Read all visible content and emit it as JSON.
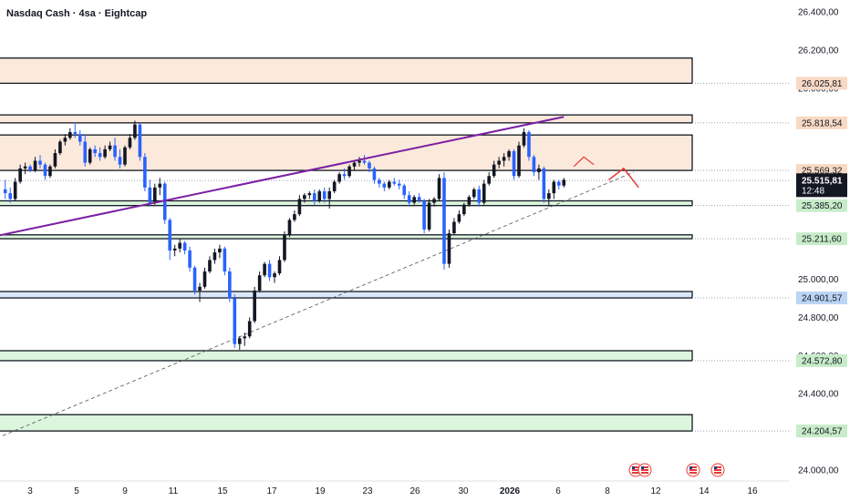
{
  "legend": {
    "symbol": "Nasdaq Cash",
    "interval": "4sa",
    "source": "Eightcap",
    "separator": " · "
  },
  "price_axis": {
    "ticks": [
      "26.400,00",
      "26.200,00",
      "25.000,00",
      "24.800,00",
      "24.400,00",
      "24.000,00"
    ],
    "tick_values": [
      26400,
      26200,
      25000,
      24800,
      24400,
      24000
    ],
    "partially_hidden": [
      {
        "text": "26.000,00",
        "value": 26000
      },
      {
        "text": "24.600,00",
        "value": 24600
      }
    ]
  },
  "price_tags": [
    {
      "text": "26.025,81",
      "value": 26025.81,
      "bg": "#f8d9c4",
      "fg": "#131722"
    },
    {
      "text": "25.818,54",
      "value": 25818.54,
      "bg": "#f8d9c4",
      "fg": "#131722"
    },
    {
      "text": "25.569,32",
      "value": 25569.32,
      "bg": "#f8d9c4",
      "fg": "#131722"
    },
    {
      "text": "25.385,20",
      "value": 25385.2,
      "bg": "#c8ecc9",
      "fg": "#131722"
    },
    {
      "text": "25.211,60",
      "value": 25211.6,
      "bg": "#c8ecc9",
      "fg": "#131722"
    },
    {
      "text": "24.901,57",
      "value": 24901.57,
      "bg": "#bcd4f5",
      "fg": "#131722"
    },
    {
      "text": "24.572,80",
      "value": 24572.8,
      "bg": "#c8ecc9",
      "fg": "#131722"
    },
    {
      "text": "24.204,57",
      "value": 24204.57,
      "bg": "#c8ecc9",
      "fg": "#131722"
    }
  ],
  "current_price": {
    "text": "25.515,81",
    "value": 25515.81,
    "countdown": "12:48",
    "bg": "#131722",
    "fg": "#ffffff"
  },
  "time_axis": {
    "labels": [
      {
        "text": "3",
        "bold": false
      },
      {
        "text": "5",
        "bold": false
      },
      {
        "text": "9",
        "bold": false
      },
      {
        "text": "11",
        "bold": false
      },
      {
        "text": "15",
        "bold": false
      },
      {
        "text": "17",
        "bold": false
      },
      {
        "text": "19",
        "bold": false
      },
      {
        "text": "23",
        "bold": false
      },
      {
        "text": "26",
        "bold": false
      },
      {
        "text": "30",
        "bold": false
      },
      {
        "text": "2026",
        "bold": true
      },
      {
        "text": "6",
        "bold": false
      },
      {
        "text": "8",
        "bold": false
      },
      {
        "text": "12",
        "bold": false
      },
      {
        "text": "14",
        "bold": false
      },
      {
        "text": "16",
        "bold": false
      }
    ]
  },
  "zones": [
    {
      "name": "supply-zone-top",
      "kind": "supply",
      "top": 26158,
      "bottom": 26025.81,
      "color": "#fbe9dc"
    },
    {
      "name": "supply-zone-mid",
      "kind": "supply",
      "top": 25860,
      "bottom": 25818.54,
      "color": "#fbe9dc"
    },
    {
      "name": "supply-zone-low",
      "kind": "supply",
      "top": 25755,
      "bottom": 25569.32,
      "color": "#fbe9dc"
    },
    {
      "name": "demand-zone-1",
      "kind": "demand",
      "top": 25410,
      "bottom": 25385.2,
      "color": "#dcf5dd"
    },
    {
      "name": "demand-zone-2",
      "kind": "demand",
      "top": 25232,
      "bottom": 25211.6,
      "color": "#dcf5dd"
    },
    {
      "name": "blue-zone",
      "kind": "neutral",
      "top": 24935,
      "bottom": 24901.57,
      "color": "#dbe8fb"
    },
    {
      "name": "demand-zone-3",
      "kind": "demand",
      "top": 24625,
      "bottom": 24572.8,
      "color": "#dcf5dd"
    },
    {
      "name": "demand-zone-4",
      "kind": "demand",
      "top": 24290,
      "bottom": 24204.57,
      "color": "#dcf5dd"
    }
  ],
  "colors": {
    "bull": "#131722",
    "bear": "#2962ff",
    "trend": "#7b1fa2",
    "projection": "#e53935",
    "grid": "#f0f3fa",
    "dashed": "#555555"
  },
  "chart_data": {
    "type": "candlestick",
    "instrument": "Nasdaq Cash",
    "candles": [
      [
        25470,
        25520,
        25420,
        25450
      ],
      [
        25450,
        25480,
        25400,
        25420
      ],
      [
        25420,
        25530,
        25410,
        25510
      ],
      [
        25510,
        25600,
        25500,
        25580
      ],
      [
        25580,
        25610,
        25550,
        25590
      ],
      [
        25590,
        25600,
        25560,
        25570
      ],
      [
        25570,
        25640,
        25560,
        25620
      ],
      [
        25620,
        25650,
        25580,
        25600
      ],
      [
        25600,
        25610,
        25520,
        25540
      ],
      [
        25540,
        25600,
        25530,
        25590
      ],
      [
        25590,
        25680,
        25580,
        25660
      ],
      [
        25660,
        25730,
        25650,
        25720
      ],
      [
        25720,
        25760,
        25700,
        25740
      ],
      [
        25740,
        25790,
        25730,
        25770
      ],
      [
        25770,
        25820,
        25740,
        25760
      ],
      [
        25760,
        25780,
        25700,
        25720
      ],
      [
        25720,
        25760,
        25590,
        25610
      ],
      [
        25610,
        25690,
        25600,
        25680
      ],
      [
        25680,
        25700,
        25640,
        25660
      ],
      [
        25660,
        25690,
        25620,
        25640
      ],
      [
        25640,
        25700,
        25630,
        25680
      ],
      [
        25680,
        25720,
        25670,
        25700
      ],
      [
        25700,
        25740,
        25620,
        25640
      ],
      [
        25640,
        25680,
        25580,
        25600
      ],
      [
        25600,
        25700,
        25590,
        25690
      ],
      [
        25690,
        25760,
        25680,
        25740
      ],
      [
        25740,
        25830,
        25730,
        25810
      ],
      [
        25810,
        25820,
        25620,
        25640
      ],
      [
        25640,
        25660,
        25460,
        25480
      ],
      [
        25480,
        25520,
        25380,
        25400
      ],
      [
        25400,
        25500,
        25390,
        25480
      ],
      [
        25480,
        25530,
        25440,
        25500
      ],
      [
        25500,
        25510,
        25290,
        25310
      ],
      [
        25310,
        25320,
        25100,
        25150
      ],
      [
        25150,
        25180,
        25120,
        25160
      ],
      [
        25160,
        25210,
        25140,
        25190
      ],
      [
        25190,
        25200,
        25130,
        25150
      ],
      [
        25150,
        25170,
        25040,
        25060
      ],
      [
        25060,
        25070,
        24920,
        24940
      ],
      [
        24940,
        24980,
        24880,
        24960
      ],
      [
        24960,
        25060,
        24950,
        25040
      ],
      [
        25040,
        25120,
        25030,
        25100
      ],
      [
        25100,
        25160,
        25080,
        25140
      ],
      [
        25140,
        25180,
        25110,
        25160
      ],
      [
        25160,
        25170,
        25020,
        25040
      ],
      [
        25040,
        25060,
        24880,
        24900
      ],
      [
        24900,
        24920,
        24640,
        24660
      ],
      [
        24660,
        24700,
        24630,
        24690
      ],
      [
        24690,
        24720,
        24650,
        24700
      ],
      [
        24700,
        24800,
        24690,
        24780
      ],
      [
        24780,
        24960,
        24770,
        24940
      ],
      [
        24940,
        25040,
        24930,
        25020
      ],
      [
        25020,
        25090,
        25010,
        25080
      ],
      [
        25080,
        25100,
        24990,
        25010
      ],
      [
        25010,
        25040,
        24980,
        25030
      ],
      [
        25030,
        25120,
        25020,
        25100
      ],
      [
        25100,
        25250,
        25090,
        25230
      ],
      [
        25230,
        25320,
        25220,
        25310
      ],
      [
        25310,
        25360,
        25300,
        25340
      ],
      [
        25340,
        25440,
        25330,
        25420
      ],
      [
        25420,
        25450,
        25400,
        25440
      ],
      [
        25440,
        25460,
        25420,
        25450
      ],
      [
        25450,
        25470,
        25390,
        25410
      ],
      [
        25410,
        25470,
        25400,
        25460
      ],
      [
        25460,
        25480,
        25400,
        25420
      ],
      [
        25420,
        25480,
        25370,
        25460
      ],
      [
        25460,
        25520,
        25450,
        25510
      ],
      [
        25510,
        25560,
        25500,
        25550
      ],
      [
        25550,
        25580,
        25520,
        25540
      ],
      [
        25540,
        25600,
        25530,
        25590
      ],
      [
        25590,
        25620,
        25570,
        25610
      ],
      [
        25610,
        25640,
        25590,
        25620
      ],
      [
        25620,
        25650,
        25600,
        25610
      ],
      [
        25610,
        25620,
        25560,
        25580
      ],
      [
        25580,
        25590,
        25500,
        25520
      ],
      [
        25520,
        25530,
        25480,
        25500
      ],
      [
        25500,
        25510,
        25460,
        25480
      ],
      [
        25480,
        25520,
        25470,
        25510
      ],
      [
        25510,
        25530,
        25490,
        25500
      ],
      [
        25500,
        25520,
        25470,
        25490
      ],
      [
        25490,
        25500,
        25420,
        25440
      ],
      [
        25440,
        25460,
        25380,
        25400
      ],
      [
        25400,
        25440,
        25390,
        25430
      ],
      [
        25430,
        25450,
        25400,
        25410
      ],
      [
        25410,
        25420,
        25240,
        25260
      ],
      [
        25260,
        25420,
        25250,
        25400
      ],
      [
        25400,
        25430,
        25380,
        25420
      ],
      [
        25420,
        25550,
        25410,
        25530
      ],
      [
        25530,
        25560,
        25050,
        25080
      ],
      [
        25080,
        25260,
        25060,
        25240
      ],
      [
        25240,
        25320,
        25230,
        25300
      ],
      [
        25300,
        25360,
        25290,
        25340
      ],
      [
        25340,
        25400,
        25330,
        25390
      ],
      [
        25390,
        25440,
        25380,
        25430
      ],
      [
        25430,
        25480,
        25420,
        25470
      ],
      [
        25470,
        25490,
        25380,
        25400
      ],
      [
        25400,
        25520,
        25390,
        25500
      ],
      [
        25500,
        25560,
        25490,
        25540
      ],
      [
        25540,
        25620,
        25530,
        25600
      ],
      [
        25600,
        25640,
        25580,
        25620
      ],
      [
        25620,
        25660,
        25590,
        25640
      ],
      [
        25640,
        25680,
        25620,
        25670
      ],
      [
        25670,
        25680,
        25520,
        25540
      ],
      [
        25540,
        25720,
        25530,
        25700
      ],
      [
        25700,
        25790,
        25690,
        25770
      ],
      [
        25770,
        25780,
        25620,
        25640
      ],
      [
        25640,
        25650,
        25540,
        25560
      ],
      [
        25560,
        25600,
        25520,
        25580
      ],
      [
        25580,
        25590,
        25400,
        25420
      ],
      [
        25420,
        25470,
        25380,
        25450
      ],
      [
        25450,
        25520,
        25420,
        25510
      ],
      [
        25510,
        25520,
        25470,
        25490
      ],
      [
        25490,
        25530,
        25480,
        25520
      ]
    ],
    "trendline": {
      "from": [
        0,
        25230
      ],
      "to": [
        112,
        25850
      ]
    },
    "dashed_trendline": {
      "from": [
        0,
        24180
      ],
      "to": [
        126,
        25560
      ]
    },
    "projection": [
      [
        121,
        25520
      ],
      [
        124,
        25580
      ],
      [
        127,
        25480
      ]
    ]
  }
}
